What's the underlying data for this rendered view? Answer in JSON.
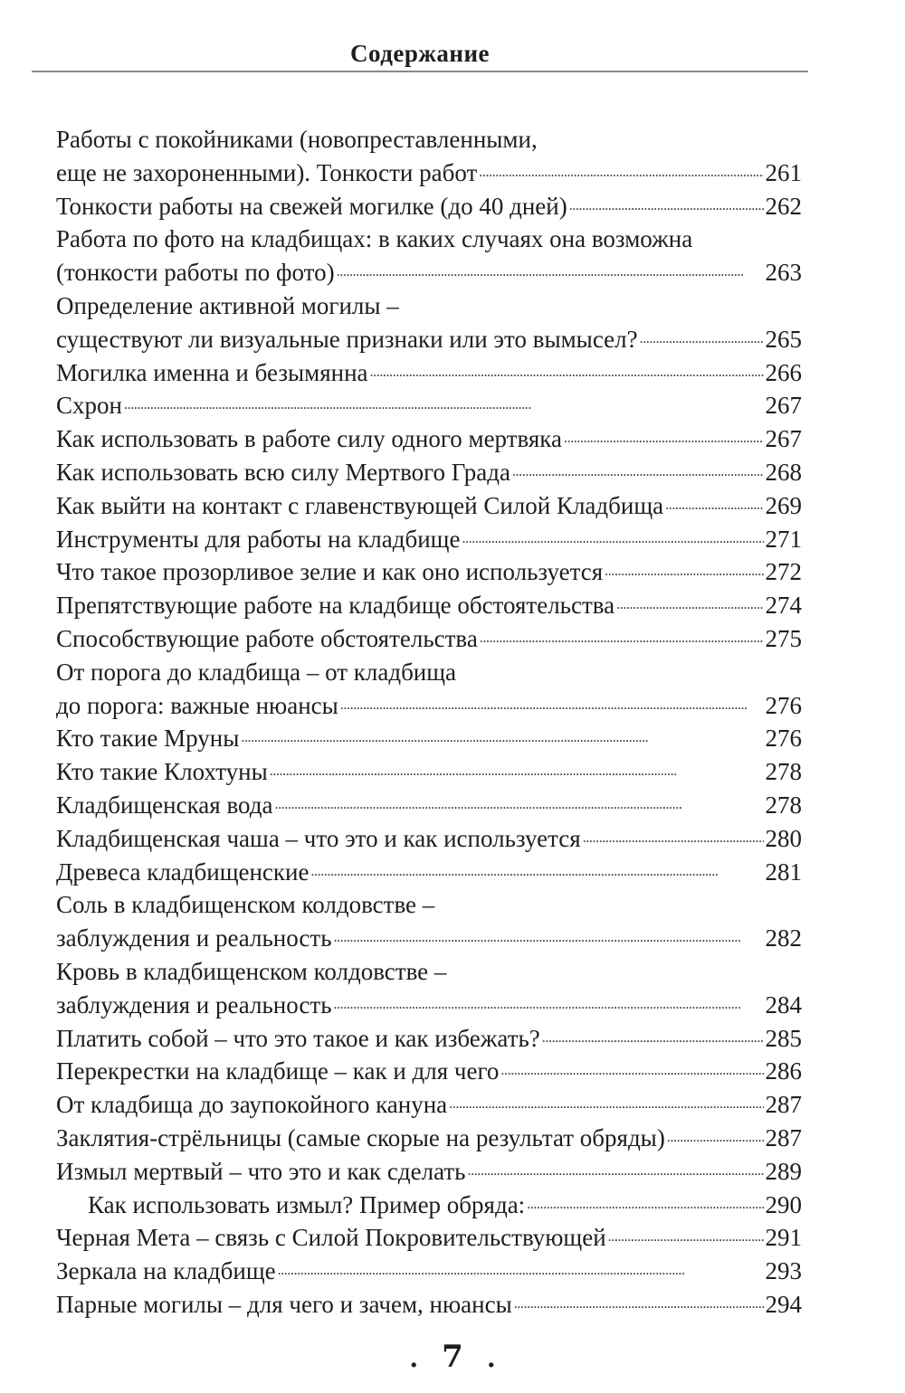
{
  "header": {
    "title": "Содержание"
  },
  "entries": [
    {
      "lines": [
        "Работы с покойниками (новопреставленными,",
        "еще не захороненными). Тонкости работ"
      ],
      "page": "261"
    },
    {
      "lines": [
        "Тонкости работы на свежей могилке (до 40 дней)"
      ],
      "page": "262"
    },
    {
      "lines": [
        "Работа по фото на кладбищах: в каких случаях она возможна",
        "(тонкости работы по фото)"
      ],
      "page": "263"
    },
    {
      "lines": [
        "Определение активной могилы –",
        "существуют ли визуальные признаки или это вымысел?"
      ],
      "page": "265"
    },
    {
      "lines": [
        "Могилка именна и безымянна"
      ],
      "page": "266"
    },
    {
      "lines": [
        "Схрон"
      ],
      "page": "267"
    },
    {
      "lines": [
        "Как использовать в работе силу одного мертвяка"
      ],
      "page": "267"
    },
    {
      "lines": [
        "Как использовать всю силу Мертвого Града"
      ],
      "page": "268"
    },
    {
      "lines": [
        "Как выйти на контакт с главенствующей Силой Кладбища"
      ],
      "page": "269"
    },
    {
      "lines": [
        "Инструменты для работы на кладбище"
      ],
      "page": "271"
    },
    {
      "lines": [
        "Что такое прозорливое зелие и как оно используется"
      ],
      "page": "272"
    },
    {
      "lines": [
        "Препятствующие работе на кладбище обстоятельства"
      ],
      "page": "274"
    },
    {
      "lines": [
        "Способствующие работе обстоятельства"
      ],
      "page": "275"
    },
    {
      "lines": [
        "От порога до кладбища – от кладбища",
        "до порога: важные нюансы"
      ],
      "page": "276"
    },
    {
      "lines": [
        "Кто такие Мруны"
      ],
      "page": "276"
    },
    {
      "lines": [
        "Кто такие Клохтуны"
      ],
      "page": "278"
    },
    {
      "lines": [
        "Кладбищенская вода"
      ],
      "page": "278"
    },
    {
      "lines": [
        "Кладбищенская чаша – что это и как используется"
      ],
      "page": "280"
    },
    {
      "lines": [
        "Древеса кладбищенские"
      ],
      "page": "281"
    },
    {
      "lines": [
        "Соль в кладбищенском колдовстве –",
        "заблуждения и реальность"
      ],
      "page": "282"
    },
    {
      "lines": [
        "Кровь в кладбищенском колдовстве –",
        "заблуждения и реальность"
      ],
      "page": "284"
    },
    {
      "lines": [
        "Платить собой – что это такое и как избежать?"
      ],
      "page": "285"
    },
    {
      "lines": [
        "Перекрестки на кладбище – как и для чего"
      ],
      "page": "286"
    },
    {
      "lines": [
        "От кладбища до заупокойного кануна"
      ],
      "page": "287"
    },
    {
      "lines": [
        "Заклятия-стрëльницы (самые скорые на результат обряды)"
      ],
      "page": "287"
    },
    {
      "lines": [
        "Измыл мертвый – что это и как сделать"
      ],
      "page": "289"
    },
    {
      "lines": [
        "Как использовать измыл? Пример обряда:"
      ],
      "page": "290",
      "indent": true
    },
    {
      "lines": [
        "Черная Мета – связь с Силой Покровительствующей"
      ],
      "page": "291"
    },
    {
      "lines": [
        "Зеркала на кладбище"
      ],
      "page": "293"
    },
    {
      "lines": [
        "Парные могилы – для чего и зачем, нюансы"
      ],
      "page": "294"
    }
  ],
  "footer": {
    "page_number": "7"
  }
}
